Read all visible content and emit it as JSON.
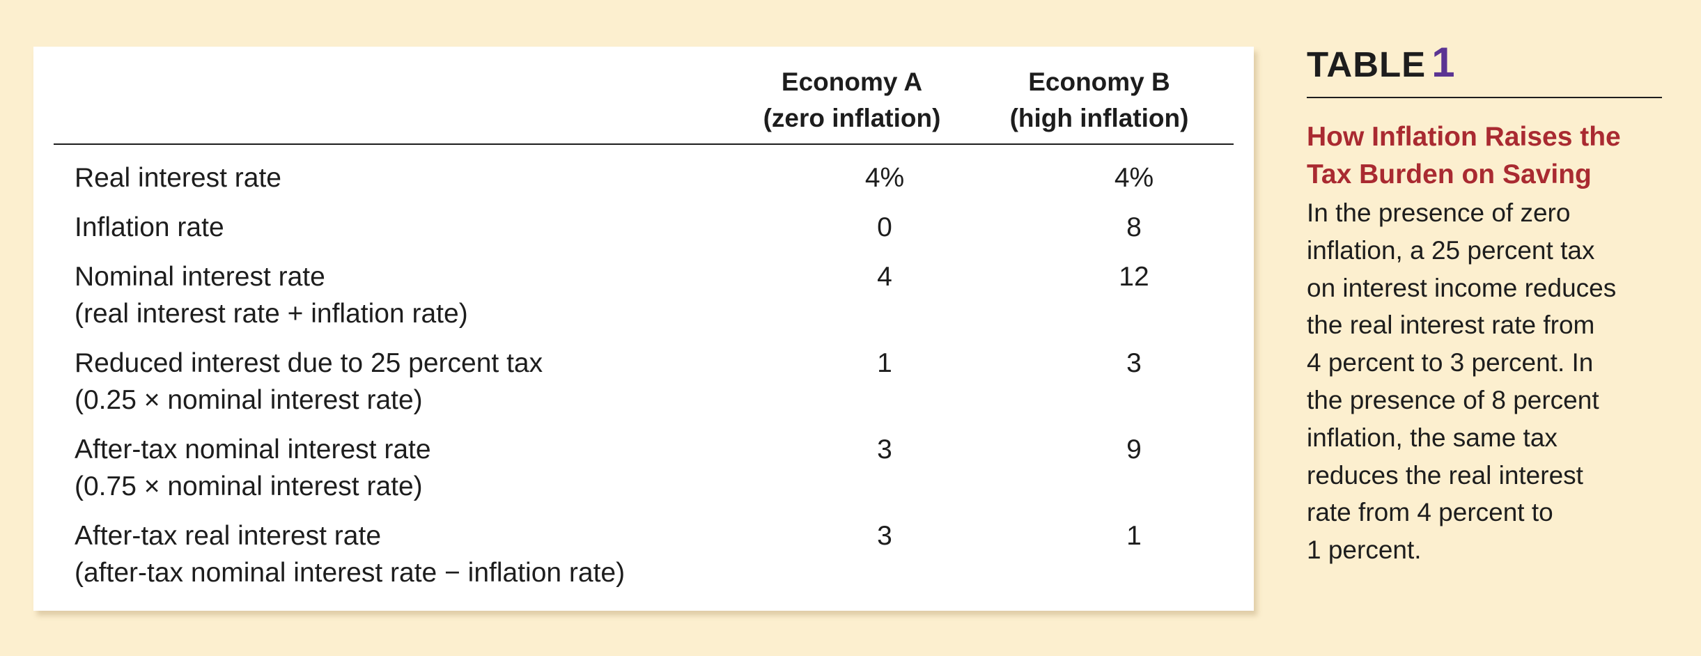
{
  "table": {
    "columns": [
      {
        "line1": "Economy A",
        "line2": "(zero inflation)"
      },
      {
        "line1": "Economy B",
        "line2": "(high inflation)"
      }
    ],
    "rows": [
      {
        "label": "Real interest rate",
        "sublabel": "",
        "a": "4%",
        "b": "4%"
      },
      {
        "label": "Inflation rate",
        "sublabel": "",
        "a": "0",
        "b": "8"
      },
      {
        "label": "Nominal interest rate",
        "sublabel": "(real interest rate + inflation rate)",
        "a": "4",
        "b": "12"
      },
      {
        "label": "Reduced interest due to 25 percent tax",
        "sublabel": "(0.25 × nominal interest rate)",
        "a": "1",
        "b": "3"
      },
      {
        "label": "After-tax nominal interest rate",
        "sublabel": "(0.75 × nominal interest rate)",
        "a": "3",
        "b": "9"
      },
      {
        "label": "After-tax real interest rate",
        "sublabel": "(after-tax nominal interest rate − inflation rate)",
        "a": "3",
        "b": "1"
      }
    ]
  },
  "caption": {
    "table_word": "TABLE",
    "table_number": "1",
    "heading_lines": [
      "How Inflation Raises the",
      "Tax Burden on Saving"
    ],
    "body_lines": [
      "In the presence of zero",
      "inflation, a 25 percent tax",
      "on interest income reduces",
      "the real interest rate from",
      "4 percent to 3 percent. In",
      "the presence of 8 percent",
      "inflation, the same tax",
      "reduces the real interest",
      "rate from 4 percent to",
      "1 percent."
    ]
  },
  "colors": {
    "page_background": "#fcefcf",
    "table_number": "#5b3493",
    "caption_heading": "#a92a31"
  }
}
